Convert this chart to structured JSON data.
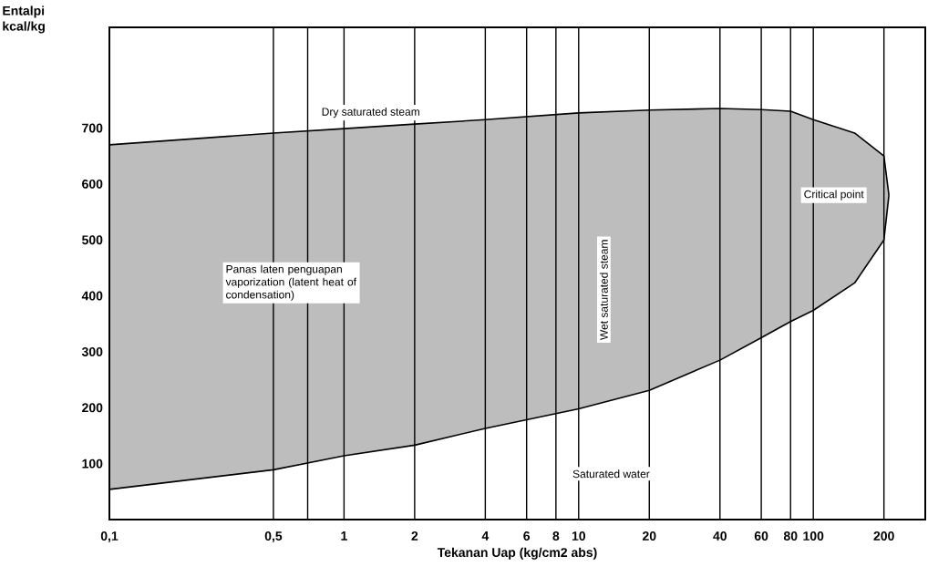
{
  "chart_data": {
    "type": "area",
    "xlabel": "Tekanan Uap (kg/cm2 abs)",
    "ylabel": "Entalpi kcal/kg",
    "log": "x",
    "grid": "x",
    "xlim": [
      0.1,
      300
    ],
    "ylim": [
      0,
      880
    ],
    "xticks": [
      {
        "value": 0.1,
        "label": "0,1"
      },
      {
        "value": 0.5,
        "label": "0,5"
      },
      {
        "value": 0.7,
        "label": null
      },
      1,
      2,
      4,
      6,
      8,
      10,
      20,
      40,
      60,
      80,
      100,
      200
    ],
    "yticks": [
      100,
      200,
      300,
      400,
      500,
      600,
      700
    ],
    "x": [
      0.1,
      0.5,
      1,
      2,
      4,
      10,
      20,
      40,
      60,
      80,
      100,
      150,
      200,
      210
    ],
    "series": [
      {
        "color": "#bdbdbd",
        "values": [
          670,
          691,
          699,
          707,
          715,
          727,
          732,
          735,
          733,
          730,
          715,
          691,
          650,
          580
        ]
      },
      {
        "color": "#ffffff",
        "values": [
          54,
          89,
          114,
          133,
          163,
          198,
          231,
          285,
          325,
          354,
          374,
          423,
          500,
          580
        ]
      }
    ],
    "annotations": [
      {
        "text": "Dry saturated steam",
        "x": 1.3,
        "y": 703
      },
      "Panas laten penguapan vaporization (latent heat of condensation)",
      "Wet saturated steam",
      "Saturated water",
      {
        "text": "Critical point",
        "x": 210,
        "y": 580
      }
    ]
  }
}
